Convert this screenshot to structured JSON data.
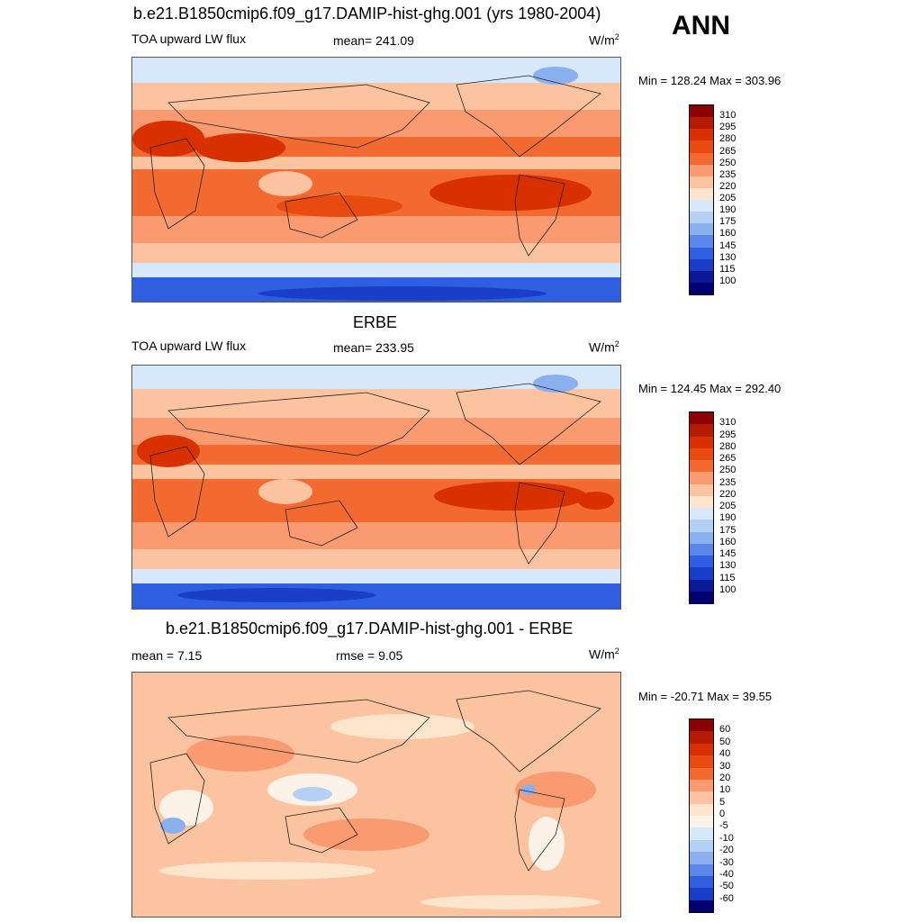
{
  "season": "ANN",
  "panels": [
    {
      "title": "b.e21.B1850cmip6.f09_g17.DAMIP-hist-ghg.001 (yrs 1980-2004)",
      "left_label": "TOA upward LW flux",
      "center_label": "mean= 241.09",
      "units": "W/m",
      "units_sup": "2",
      "minmax": "Min = 128.24 Max = 303.96",
      "colorbar_labels": [
        "310",
        "295",
        "280",
        "265",
        "250",
        "235",
        "220",
        "205",
        "190",
        "175",
        "160",
        "145",
        "130",
        "115",
        "100"
      ]
    },
    {
      "title": "ERBE",
      "left_label": "TOA upward LW flux",
      "center_label": "mean= 233.95",
      "units": "W/m",
      "units_sup": "2",
      "minmax": "Min = 124.45 Max = 292.40",
      "colorbar_labels": [
        "310",
        "295",
        "280",
        "265",
        "250",
        "235",
        "220",
        "205",
        "190",
        "175",
        "160",
        "145",
        "130",
        "115",
        "100"
      ]
    },
    {
      "title": "b.e21.B1850cmip6.f09_g17.DAMIP-hist-ghg.001 - ERBE",
      "left_label": "mean =   7.15",
      "center_label": "rmse =   9.05",
      "units": "W/m",
      "units_sup": "2",
      "minmax": "Min = -20.71 Max =  39.55",
      "colorbar_labels": [
        "60",
        "50",
        "40",
        "30",
        "20",
        "10",
        "5",
        "0",
        "-5",
        "-10",
        "-20",
        "-30",
        "-40",
        "-50",
        "-60"
      ]
    }
  ],
  "colors": {
    "abs_scale": [
      "#8b0000",
      "#b51b00",
      "#d93000",
      "#e84a10",
      "#f26a30",
      "#f99a70",
      "#fcc3a0",
      "#fde4cc",
      "#d6e8fa",
      "#b4d0f5",
      "#8ab0f0",
      "#5c86ea",
      "#2f5fe0",
      "#1a3ec8",
      "#0a1a96",
      "#000070"
    ],
    "diff_scale": [
      "#8b0000",
      "#b51b00",
      "#d93000",
      "#e84a10",
      "#f26a30",
      "#f99a70",
      "#fcc3a0",
      "#fde4cc",
      "#fdf2e8",
      "#d6e8fa",
      "#b4d0f5",
      "#8ab0f0",
      "#5c86ea",
      "#2f5fe0",
      "#1a3ec8",
      "#000070"
    ]
  }
}
